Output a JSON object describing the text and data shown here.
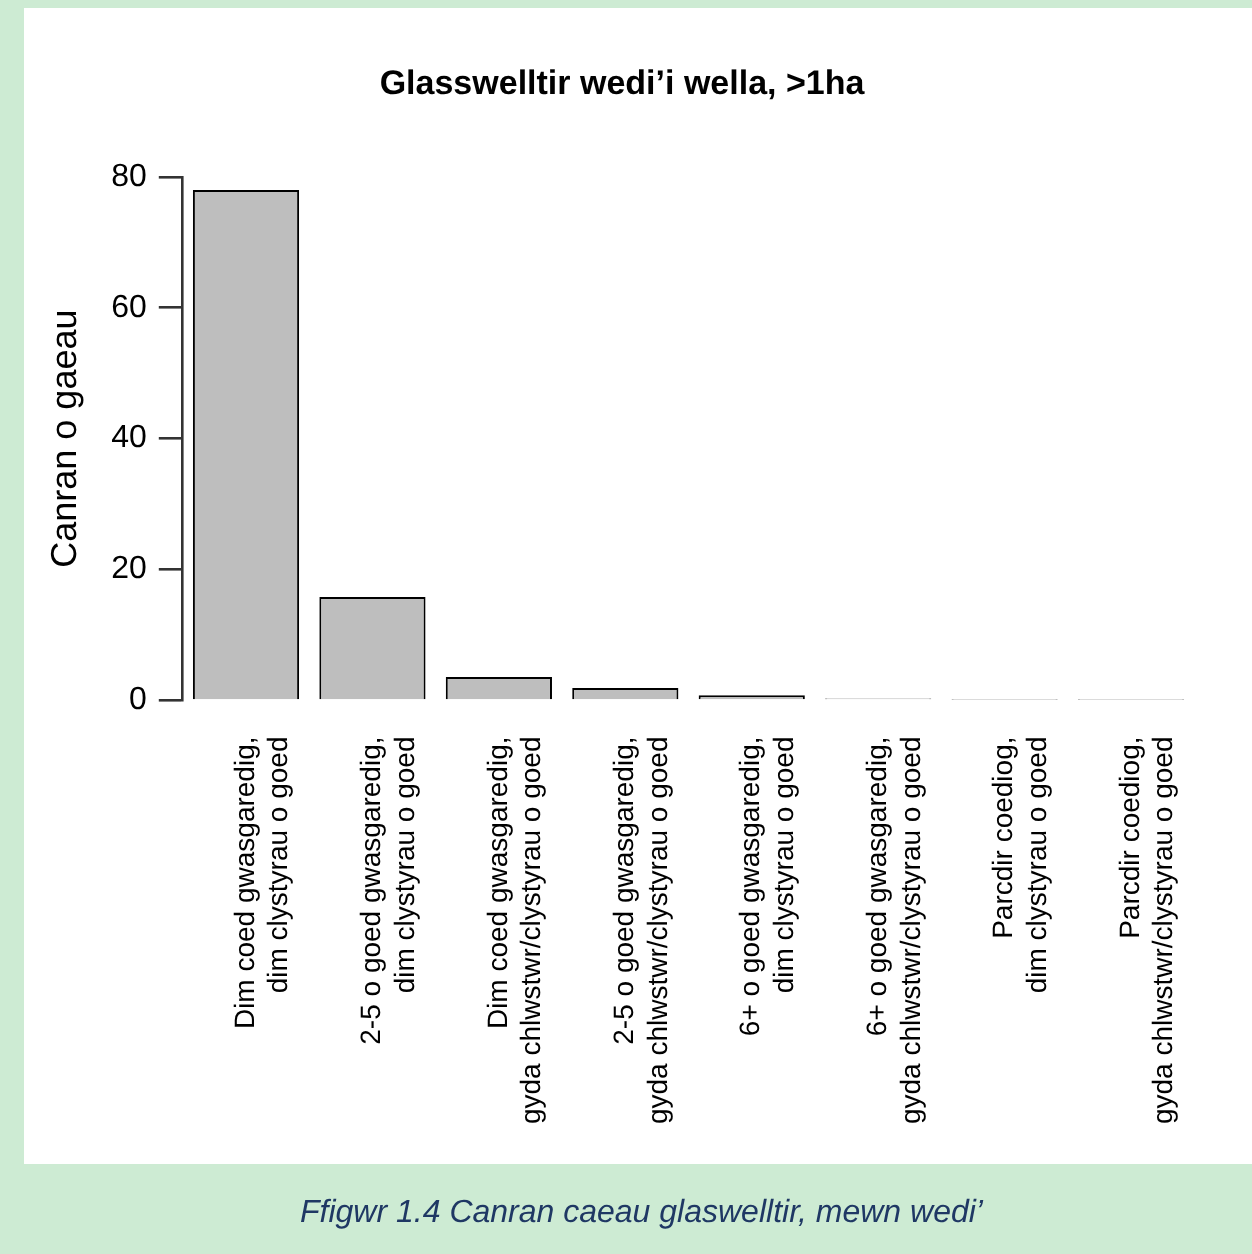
{
  "chart_data": {
    "type": "bar",
    "title": "Glasswelltir wedi’i wella, >1ha",
    "ylabel": "Canran o gaeau",
    "categories": [
      "Dim coed gwasgaredig, dim clystyrau o goed",
      "2-5 o goed gwasgaredig, dim clystyrau o goed",
      "Dim coed gwasgaredig, gyda chlwstwr/clystyrau o goed",
      "2-5 o goed gwasgaredig, gyda chlwstwr/clystyrau o goed",
      "6+ o goed gwasgaredig, dim clystyrau o goed",
      "6+ o goed gwasgaredig, gyda chlwstwr/clystyrau o goed",
      "Parcdir coediog, dim clystyrau o goed",
      "Parcdir coediog, gyda chlwstwr/clystyrau o goed"
    ],
    "values": [
      78,
      15.8,
      3.6,
      1.9,
      0.8,
      0.3,
      0.1,
      0.1
    ],
    "color": "#bebebe",
    "ylim": [
      0,
      80
    ],
    "yticks": [
      0,
      20,
      40,
      60,
      80
    ],
    "grid": false,
    "legend": false,
    "annotations": [
      "Ffigwr 1.4 Canran caeau glaswelltir, mewn wedi’"
    ]
  }
}
